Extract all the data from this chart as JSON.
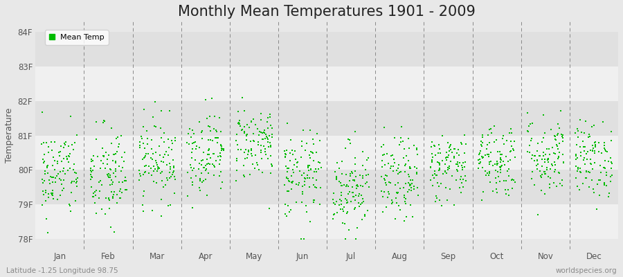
{
  "title": "Monthly Mean Temperatures 1901 - 2009",
  "ylabel": "Temperature",
  "xlabel_bottom_left": "Latitude -1.25 Longitude 98.75",
  "xlabel_bottom_right": "worldspecies.org",
  "legend_label": "Mean Temp",
  "months": [
    "Jan",
    "Feb",
    "Mar",
    "Apr",
    "May",
    "Jun",
    "Jul",
    "Aug",
    "Sep",
    "Oct",
    "Nov",
    "Dec"
  ],
  "ytick_labels": [
    "78F",
    "79F",
    "80F",
    "81F",
    "82F",
    "83F",
    "84F"
  ],
  "ytick_values": [
    78,
    79,
    80,
    81,
    82,
    83,
    84
  ],
  "ylim": [
    77.7,
    84.3
  ],
  "dot_color": "#00BB00",
  "background_color": "#E8E8E8",
  "band_color_even": "#F0F0F0",
  "band_color_odd": "#E0E0E0",
  "title_fontsize": 15,
  "axis_label_fontsize": 9,
  "tick_label_fontsize": 8.5,
  "n_years": 109,
  "seed": 42,
  "month_means": [
    79.9,
    79.8,
    80.3,
    80.5,
    80.8,
    79.8,
    79.5,
    79.7,
    80.1,
    80.3,
    80.4,
    80.3
  ],
  "month_stds": [
    0.65,
    0.75,
    0.6,
    0.6,
    0.55,
    0.65,
    0.65,
    0.6,
    0.5,
    0.55,
    0.6,
    0.55
  ]
}
